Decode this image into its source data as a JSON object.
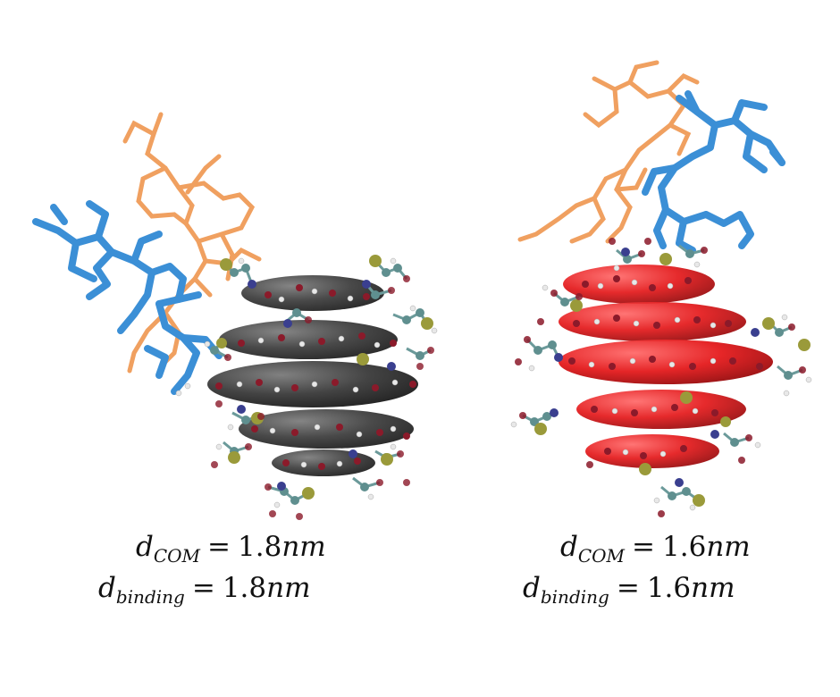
{
  "panels": [
    {
      "name": "left",
      "ring_color": "#3a3a3a",
      "labels": [
        {
          "symbol": "d",
          "subscript": "COM",
          "relation": "=",
          "value": "1.8",
          "unit": "nm"
        },
        {
          "symbol": "d",
          "subscript": "binding",
          "relation": "=",
          "value": "1.8",
          "unit": "nm"
        }
      ]
    },
    {
      "name": "right",
      "ring_color": "#e41a1c",
      "labels": [
        {
          "symbol": "d",
          "subscript": "COM",
          "relation": "=",
          "value": "1.6",
          "unit": "nm"
        },
        {
          "symbol": "d",
          "subscript": "binding",
          "relation": "=",
          "value": "1.6",
          "unit": "nm"
        }
      ]
    }
  ],
  "colors": {
    "ligand_blue": "#3b8fd6",
    "ligand_orange": "#f0a060",
    "atom_red": "#8b1a2a",
    "atom_teal": "#5f8f8f",
    "atom_white": "#e8e8e8",
    "atom_olive": "#9a9a3a",
    "atom_navy": "#3a3f8f"
  }
}
